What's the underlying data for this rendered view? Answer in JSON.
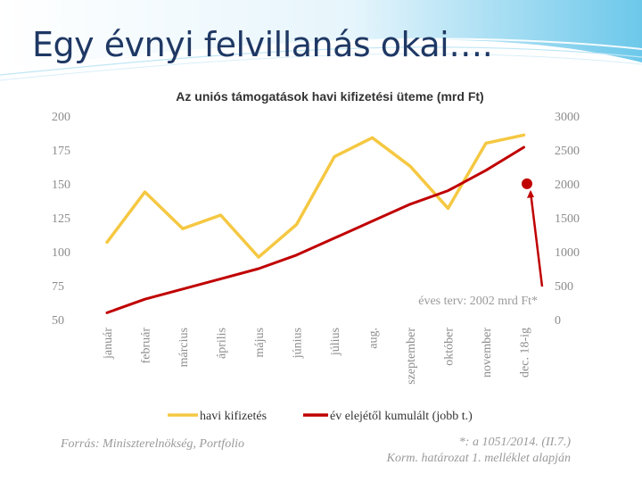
{
  "slide": {
    "title": "Egy évnyi felvillanás okai…."
  },
  "chart_data": {
    "type": "line",
    "title": "Az uniós támogatások havi kifizetési üteme (mrd Ft)",
    "categories": [
      "január",
      "február",
      "március",
      "április",
      "május",
      "június",
      "július",
      "aug.",
      "szeptember",
      "október",
      "november",
      "dec. 18-ig"
    ],
    "left_axis": {
      "ticks": [
        "200",
        "175",
        "150",
        "125",
        "100",
        "75",
        "50"
      ],
      "ylim": [
        50,
        200
      ]
    },
    "right_axis": {
      "ticks": [
        "3000",
        "2500",
        "2000",
        "1500",
        "1000",
        "500",
        "0"
      ],
      "ylim": [
        0,
        3000
      ]
    },
    "series": [
      {
        "name": "havi kifizetés",
        "axis": "left",
        "color": "#f5c842",
        "values": [
          107,
          144,
          117,
          127,
          96,
          120,
          170,
          184,
          163,
          132,
          180,
          186
        ]
      },
      {
        "name": "év elejétől kumulált (jobb t.)",
        "axis": "right",
        "color": "#c00000",
        "values": [
          100,
          300,
          450,
          600,
          750,
          950,
          1200,
          1450,
          1700,
          1900,
          2200,
          2540
        ]
      }
    ],
    "target": {
      "label": "éves terv: 2002 mrd Ft*",
      "value": 2002,
      "color": "#c00000"
    },
    "legend_position": "bottom",
    "source": "Forrás: Miniszterelnökség, Portfolio",
    "footnote": [
      "*: a 1051/2014. (II.7.)",
      "Korm. határozat 1. melléklet alapján"
    ],
    "grid": false
  }
}
